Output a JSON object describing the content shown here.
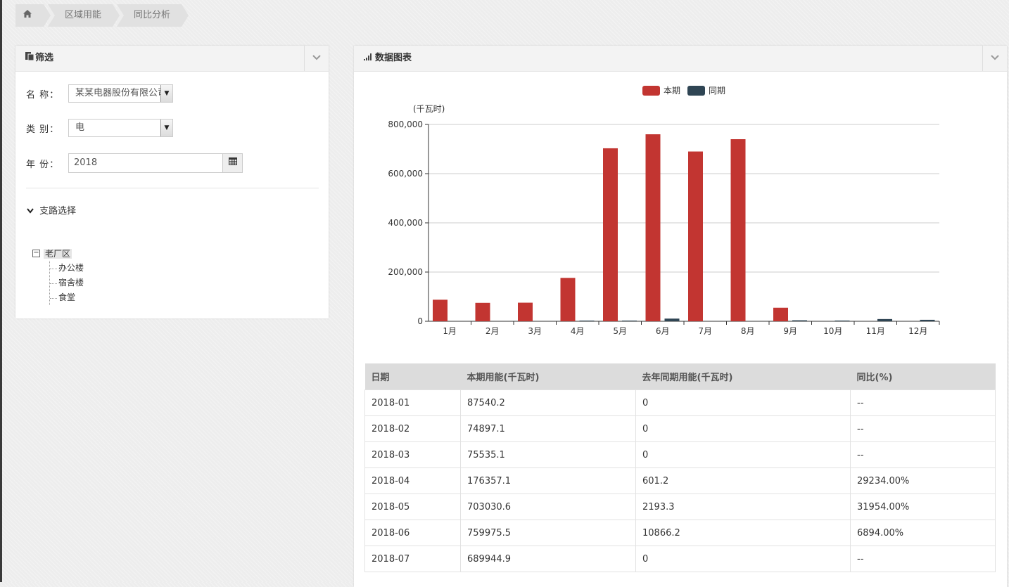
{
  "breadcrumb": {
    "items": [
      "区域用能",
      "同比分析"
    ]
  },
  "filter": {
    "title": "筛选",
    "name_label": "名 称：",
    "name_value": "某某电器股份有限公司",
    "category_label": "类 别：",
    "category_value": "电",
    "year_label": "年 份：",
    "year_value": "2018",
    "branch_title": "支路选择",
    "tree": {
      "root": "老厂区",
      "children": [
        "办公楼",
        "宿舍楼",
        "食堂"
      ]
    }
  },
  "chart_panel": {
    "title": "数据图表"
  },
  "chart_data": {
    "type": "bar",
    "unit_label": "(千瓦时)",
    "categories": [
      "1月",
      "2月",
      "3月",
      "4月",
      "5月",
      "6月",
      "7月",
      "8月",
      "9月",
      "10月",
      "11月",
      "12月"
    ],
    "series": [
      {
        "name": "本期",
        "color": "#c23531",
        "values": [
          87540.2,
          74897.1,
          75535.1,
          176357.1,
          703030.6,
          759975.5,
          689944.9,
          740000,
          55000,
          0,
          0,
          0
        ]
      },
      {
        "name": "同期",
        "color": "#2f4554",
        "values": [
          0,
          0,
          0,
          601.2,
          2193.3,
          10866.2,
          0,
          0,
          4000,
          3000,
          9000,
          6000
        ]
      }
    ],
    "ylim": [
      0,
      800000
    ],
    "yticks": [
      "0",
      "200,000",
      "400,000",
      "600,000",
      "800,000"
    ],
    "grid": true,
    "legend": "top-center"
  },
  "table": {
    "headers": [
      "日期",
      "本期用能(千瓦时)",
      "去年同期用能(千瓦时)",
      "同比(%)"
    ],
    "rows": [
      [
        "2018-01",
        "87540.2",
        "0",
        "--"
      ],
      [
        "2018-02",
        "74897.1",
        "0",
        "--"
      ],
      [
        "2018-03",
        "75535.1",
        "0",
        "--"
      ],
      [
        "2018-04",
        "176357.1",
        "601.2",
        "29234.00%"
      ],
      [
        "2018-05",
        "703030.6",
        "2193.3",
        "31954.00%"
      ],
      [
        "2018-06",
        "759975.5",
        "10866.2",
        "6894.00%"
      ],
      [
        "2018-07",
        "689944.9",
        "0",
        "--"
      ]
    ]
  }
}
